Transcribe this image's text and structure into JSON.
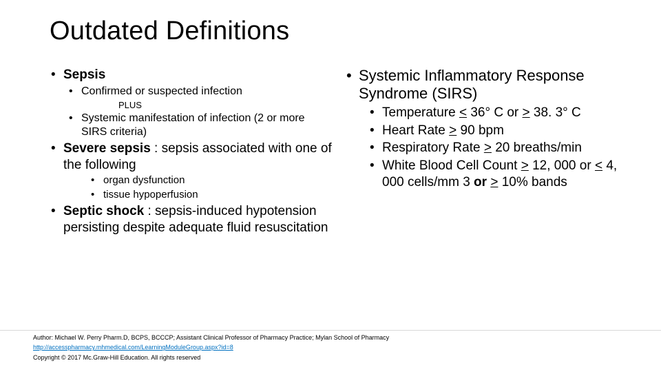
{
  "title": "Outdated Definitions",
  "left": {
    "sepsis": {
      "heading": "Sepsis",
      "sub1": "Confirmed or suspected infection",
      "plus": "PLUS",
      "sub2": "Systemic manifestation of infection (2 or more SIRS criteria)"
    },
    "severe": {
      "heading_bold": "Severe sepsis",
      "heading_rest": " : sepsis associated with one of the following",
      "sub1": "organ dysfunction",
      "sub2": "tissue hypoperfusion"
    },
    "shock": {
      "heading_bold": "Septic shock",
      "heading_rest": " : sepsis-induced hypotension persisting despite adequate fluid resuscitation"
    }
  },
  "right": {
    "heading": "Systemic Inflammatory Response Syndrome (SIRS)",
    "criteria": {
      "temp_pre": "Temperature ",
      "temp_lt": "<",
      "temp_mid": " 36° C or ",
      "temp_gt": ">",
      "temp_post": " 38. 3° C",
      "hr_pre": "Heart Rate ",
      "hr_gt": ">",
      "hr_post": " 90 bpm",
      "rr_pre": "Respiratory Rate ",
      "rr_gt": ">",
      "rr_post": " 20 breaths/min",
      "wbc_pre": "White Blood Cell Count ",
      "wbc_gt1": ">",
      "wbc_mid1": " 12, 000 or ",
      "wbc_lt": "<",
      "wbc_mid2": " 4, 000 cells/mm 3 ",
      "wbc_or": "or ",
      "wbc_gt2": ">",
      "wbc_post": " 10% bands"
    }
  },
  "footer": {
    "author": "Author: Michael W. Perry Pharm.D, BCPS, BCCCP; Assistant Clinical Professor of Pharmacy Practice; Mylan School of Pharmacy",
    "link": "http://accesspharmacy.mhmedical.com/LearningModuleGroup.aspx?id=8",
    "copyright": "Copyright © 2017 Mc.Graw-Hill Education. All rights reserved"
  }
}
